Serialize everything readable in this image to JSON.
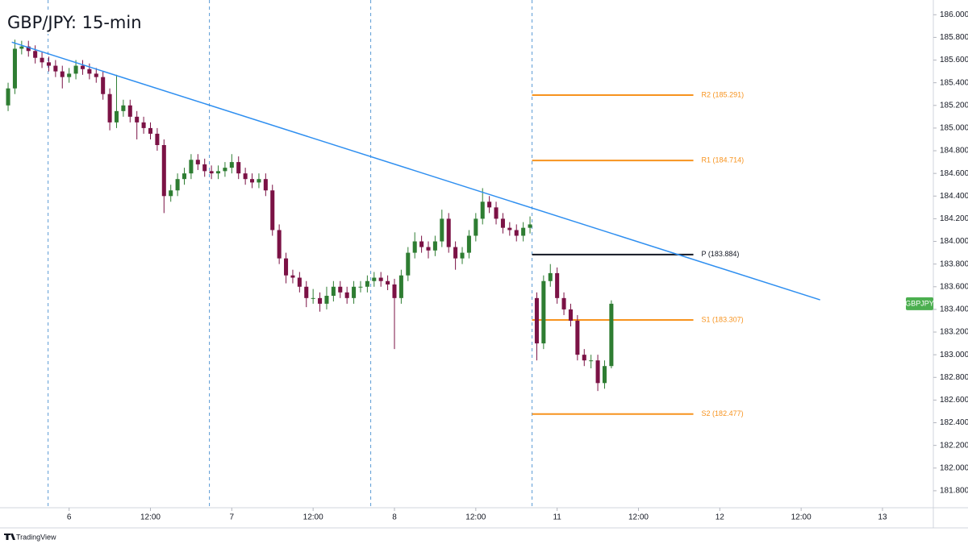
{
  "chart_data": {
    "type": "candlestick",
    "title": "GBP/JPY: 15-min",
    "symbol": "GBPJPY",
    "source": "TradingView",
    "up_color": "#2e7d32",
    "down_color": "#7b1245",
    "symbol_color": "#4caf50",
    "trendline_color": "#2f8ff0",
    "session_color": "#5b9bd5",
    "xlim": [
      -9.6,
      127.5
    ],
    "ylim": [
      181.65,
      186.13
    ],
    "xticks": [
      {
        "value": 0,
        "label": "6"
      },
      {
        "value": 12,
        "label": "12:00"
      },
      {
        "value": 24,
        "label": "7"
      },
      {
        "value": 36,
        "label": "12:00"
      },
      {
        "value": 48,
        "label": "8"
      },
      {
        "value": 60,
        "label": "12:00"
      },
      {
        "value": 72,
        "label": "11"
      },
      {
        "value": 84,
        "label": "12:00"
      },
      {
        "value": 96,
        "label": "12"
      },
      {
        "value": 108,
        "label": "12:00"
      },
      {
        "value": 120,
        "label": "13"
      }
    ],
    "yticks": [
      {
        "value": 181.8,
        "label": "181.800"
      },
      {
        "value": 182.0,
        "label": "182.000"
      },
      {
        "value": 182.2,
        "label": "182.200"
      },
      {
        "value": 182.4,
        "label": "182.400"
      },
      {
        "value": 182.6,
        "label": "182.600"
      },
      {
        "value": 182.8,
        "label": "182.800"
      },
      {
        "value": 183.0,
        "label": "183.000"
      },
      {
        "value": 183.2,
        "label": "183.200"
      },
      {
        "value": 183.4,
        "label": "183.400"
      },
      {
        "value": 183.6,
        "label": "183.600"
      },
      {
        "value": 183.8,
        "label": "183.800"
      },
      {
        "value": 184.0,
        "label": "184.000"
      },
      {
        "value": 184.2,
        "label": "184.200"
      },
      {
        "value": 184.4,
        "label": "184.400"
      },
      {
        "value": 184.6,
        "label": "184.600"
      },
      {
        "value": 184.8,
        "label": "184.800"
      },
      {
        "value": 185.0,
        "label": "185.000"
      },
      {
        "value": 185.2,
        "label": "185.200"
      },
      {
        "value": 185.4,
        "label": "185.400"
      },
      {
        "value": 185.6,
        "label": "185.600"
      },
      {
        "value": 185.8,
        "label": "185.800"
      },
      {
        "value": 186.0,
        "label": "186.000"
      }
    ],
    "session_breaks": [
      -3.1,
      20.7,
      44.5,
      68.3
    ],
    "trendline": {
      "x": [
        -8.45,
        110.8
      ],
      "y": [
        185.758,
        183.484
      ]
    },
    "pivots": {
      "x": [
        68.3,
        92.1
      ],
      "levels": [
        {
          "label": "R2 (185.291)",
          "value": 185.291,
          "color": "#f7931e"
        },
        {
          "label": "R1 (184.714)",
          "value": 184.714,
          "color": "#f7931e"
        },
        {
          "label": "P (183.884)",
          "value": 183.884,
          "color": "#131722"
        },
        {
          "label": "S1 (183.307)",
          "value": 183.307,
          "color": "#f7931e"
        },
        {
          "label": "S2 (182.477)",
          "value": 182.477,
          "color": "#f7931e"
        }
      ]
    },
    "x": [
      -9,
      -8,
      -7,
      -6,
      -5,
      -4,
      -3,
      -2,
      -1,
      0,
      1,
      2,
      3,
      4,
      5,
      6,
      7,
      8,
      9,
      10,
      11,
      12,
      13,
      14,
      15,
      16,
      17,
      18,
      19,
      20,
      21,
      22,
      23,
      24,
      25,
      26,
      27,
      28,
      29,
      30,
      31,
      32,
      33,
      34,
      35,
      36,
      37,
      38,
      39,
      40,
      41,
      42,
      43,
      44,
      45,
      46,
      47,
      48,
      49,
      50,
      51,
      52,
      53,
      54,
      55,
      56,
      57,
      58,
      59,
      60,
      61,
      62,
      63,
      64,
      65,
      66,
      67,
      68,
      69,
      70,
      71,
      72,
      73,
      74,
      75,
      76,
      77,
      78,
      79,
      80
    ],
    "open": [
      185.2,
      185.35,
      185.7,
      185.72,
      185.68,
      185.62,
      185.58,
      185.55,
      185.5,
      185.45,
      185.48,
      185.55,
      185.52,
      185.48,
      185.45,
      185.3,
      185.05,
      185.15,
      185.2,
      185.1,
      185.05,
      185.0,
      184.95,
      184.85,
      184.4,
      184.45,
      184.55,
      184.6,
      184.72,
      184.68,
      184.62,
      184.6,
      184.62,
      184.65,
      184.7,
      184.6,
      184.55,
      184.52,
      184.55,
      184.45,
      184.1,
      183.85,
      183.7,
      183.68,
      183.6,
      183.5,
      183.5,
      183.45,
      183.52,
      183.6,
      183.55,
      183.5,
      183.6,
      183.6,
      183.65,
      183.68,
      183.65,
      183.62,
      183.5,
      183.7,
      183.9,
      184.0,
      183.95,
      183.92,
      184.0,
      184.2,
      183.95,
      183.85,
      183.9,
      184.05,
      184.2,
      184.35,
      184.3,
      184.2,
      184.12,
      184.1,
      184.05,
      184.12,
      183.5,
      183.1,
      183.65,
      183.72,
      183.5,
      183.4,
      183.3,
      183.0,
      182.95,
      182.95,
      182.75,
      182.9
    ],
    "high": [
      185.4,
      185.78,
      185.77,
      185.77,
      185.73,
      185.67,
      185.63,
      185.6,
      185.55,
      185.53,
      185.6,
      185.6,
      185.57,
      185.53,
      185.5,
      185.35,
      185.47,
      185.25,
      185.25,
      185.15,
      185.1,
      185.05,
      185.0,
      184.9,
      184.5,
      184.6,
      184.65,
      184.77,
      184.77,
      184.73,
      184.67,
      184.67,
      184.7,
      184.77,
      184.75,
      184.65,
      184.6,
      184.6,
      184.6,
      184.5,
      184.15,
      183.9,
      183.75,
      183.73,
      183.65,
      183.58,
      183.55,
      183.6,
      183.65,
      183.65,
      183.6,
      183.65,
      183.65,
      183.7,
      183.73,
      183.73,
      183.7,
      183.67,
      183.75,
      183.95,
      184.08,
      184.05,
      184.0,
      184.05,
      184.28,
      184.25,
      184.0,
      183.95,
      184.1,
      184.25,
      184.47,
      184.4,
      184.35,
      184.25,
      184.17,
      184.15,
      184.17,
      184.22,
      183.55,
      183.7,
      183.8,
      183.77,
      183.55,
      183.45,
      183.35,
      183.05,
      183.0,
      183.0,
      182.95,
      183.48
    ],
    "low": [
      185.15,
      185.3,
      185.65,
      185.63,
      185.57,
      185.53,
      185.5,
      185.45,
      185.35,
      185.4,
      185.43,
      185.47,
      185.43,
      185.4,
      185.25,
      184.98,
      185.0,
      185.1,
      185.05,
      184.9,
      184.95,
      184.9,
      184.8,
      184.25,
      184.35,
      184.4,
      184.5,
      184.55,
      184.63,
      184.57,
      184.55,
      184.55,
      184.57,
      184.6,
      184.55,
      184.5,
      184.47,
      184.47,
      184.4,
      184.05,
      183.8,
      183.63,
      183.63,
      183.55,
      183.42,
      183.45,
      183.38,
      183.4,
      183.47,
      183.5,
      183.45,
      183.45,
      183.55,
      183.55,
      183.6,
      183.6,
      183.57,
      183.05,
      183.45,
      183.65,
      183.85,
      183.9,
      183.85,
      183.87,
      183.95,
      183.9,
      183.75,
      183.8,
      183.85,
      184.0,
      184.15,
      184.25,
      184.15,
      184.07,
      184.05,
      184.0,
      184.0,
      184.07,
      182.95,
      183.05,
      183.6,
      183.45,
      183.35,
      183.25,
      182.95,
      182.9,
      182.88,
      182.68,
      182.7,
      182.88
    ],
    "close": [
      185.35,
      185.7,
      185.72,
      185.68,
      185.62,
      185.58,
      185.55,
      185.5,
      185.45,
      185.48,
      185.55,
      185.52,
      185.48,
      185.45,
      185.3,
      185.05,
      185.15,
      185.2,
      185.1,
      185.05,
      185.0,
      184.95,
      184.85,
      184.4,
      184.45,
      184.55,
      184.6,
      184.72,
      184.68,
      184.62,
      184.6,
      184.62,
      184.65,
      184.7,
      184.6,
      184.55,
      184.52,
      184.55,
      184.45,
      184.1,
      183.85,
      183.7,
      183.68,
      183.6,
      183.5,
      183.5,
      183.45,
      183.52,
      183.6,
      183.55,
      183.5,
      183.6,
      183.6,
      183.65,
      183.68,
      183.65,
      183.62,
      183.5,
      183.7,
      183.9,
      184.0,
      183.95,
      183.92,
      184.0,
      184.2,
      183.95,
      183.85,
      183.9,
      184.05,
      184.2,
      184.35,
      184.3,
      184.2,
      184.12,
      184.1,
      184.05,
      184.12,
      184.15,
      183.1,
      183.65,
      183.72,
      183.5,
      183.4,
      183.3,
      183.0,
      182.95,
      182.95,
      182.75,
      182.9,
      183.45
    ]
  }
}
